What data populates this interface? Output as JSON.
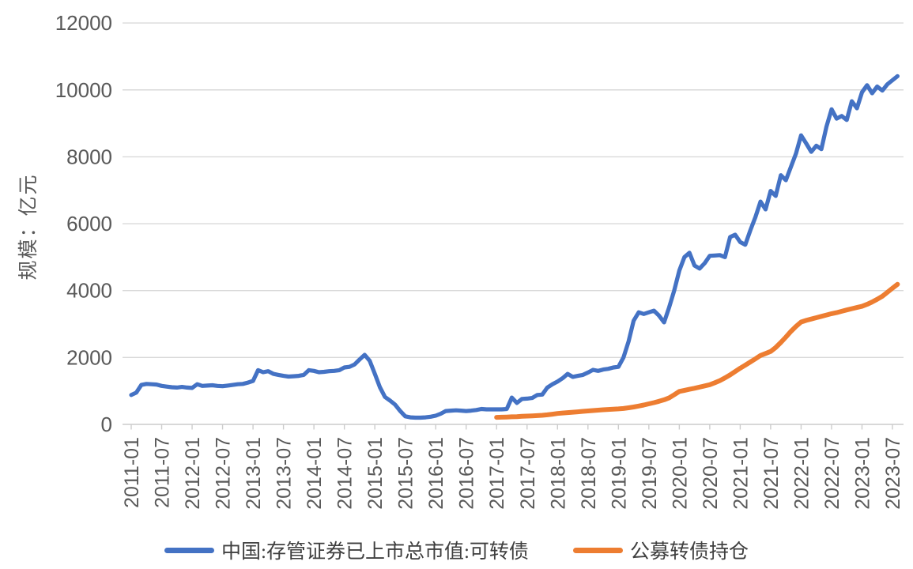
{
  "chart_data": {
    "type": "line",
    "title": "",
    "xlabel": "",
    "ylabel": "规模：亿元",
    "ylim": [
      0,
      12000
    ],
    "yticks": [
      0,
      2000,
      4000,
      6000,
      8000,
      10000,
      12000
    ],
    "xtick_labels": [
      "2011-01",
      "2011-07",
      "2012-01",
      "2012-07",
      "2013-01",
      "2013-07",
      "2014-01",
      "2014-07",
      "2015-01",
      "2015-07",
      "2016-01",
      "2016-07",
      "2017-01",
      "2017-07",
      "2018-01",
      "2018-07",
      "2019-01",
      "2019-07",
      "2020-01",
      "2020-07",
      "2021-01",
      "2021-07",
      "2022-01",
      "2022-07",
      "2023-01",
      "2023-07"
    ],
    "x_frequency": "monthly",
    "x_start": "2011-01",
    "x_end": "2023-08",
    "grid": "horizontal",
    "legend_position": "bottom",
    "series": [
      {
        "name": "中国:存管证券已上市总市值:可转债",
        "color": "#4472C4",
        "start": "2011-01",
        "start_index": 0,
        "values": [
          880,
          950,
          1180,
          1210,
          1200,
          1190,
          1150,
          1130,
          1110,
          1100,
          1120,
          1100,
          1090,
          1200,
          1150,
          1160,
          1170,
          1150,
          1140,
          1160,
          1180,
          1200,
          1210,
          1250,
          1300,
          1620,
          1560,
          1590,
          1510,
          1480,
          1450,
          1430,
          1440,
          1450,
          1480,
          1620,
          1600,
          1560,
          1570,
          1590,
          1600,
          1620,
          1700,
          1720,
          1790,
          1940,
          2080,
          1900,
          1510,
          1110,
          820,
          710,
          590,
          400,
          240,
          210,
          200,
          200,
          210,
          230,
          260,
          320,
          400,
          410,
          420,
          410,
          400,
          410,
          430,
          460,
          450,
          450,
          450,
          450,
          460,
          800,
          640,
          760,
          770,
          790,
          880,
          890,
          1100,
          1200,
          1280,
          1380,
          1510,
          1420,
          1450,
          1480,
          1550,
          1630,
          1600,
          1640,
          1660,
          1700,
          1720,
          2000,
          2480,
          3100,
          3350,
          3300,
          3350,
          3400,
          3250,
          3050,
          3500,
          4000,
          4600,
          5000,
          5130,
          4750,
          4660,
          4820,
          5040,
          5050,
          5060,
          5000,
          5600,
          5670,
          5450,
          5370,
          5800,
          6200,
          6660,
          6430,
          6980,
          6830,
          7450,
          7300,
          7700,
          8100,
          8640,
          8400,
          8150,
          8330,
          8230,
          8900,
          9420,
          9140,
          9220,
          9100,
          9660,
          9450,
          9930,
          10140,
          9900,
          10100,
          9980,
          10170,
          10290,
          10410
        ]
      },
      {
        "name": "公募转债持仓",
        "color": "#ED7D31",
        "start": "2017-01",
        "start_index": 72,
        "values": [
          210,
          215,
          220,
          226,
          232,
          240,
          247,
          254,
          262,
          272,
          285,
          305,
          325,
          340,
          352,
          364,
          376,
          390,
          402,
          414,
          426,
          436,
          446,
          455,
          462,
          475,
          495,
          520,
          548,
          580,
          615,
          650,
          690,
          735,
          795,
          885,
          985,
          1015,
          1050,
          1080,
          1115,
          1150,
          1185,
          1245,
          1310,
          1390,
          1480,
          1580,
          1680,
          1770,
          1865,
          1960,
          2060,
          2120,
          2180,
          2300,
          2450,
          2610,
          2780,
          2930,
          3060,
          3110,
          3150,
          3190,
          3230,
          3270,
          3310,
          3340,
          3380,
          3420,
          3460,
          3495,
          3530,
          3590,
          3660,
          3740,
          3830,
          3950,
          4070,
          4190
        ]
      }
    ]
  },
  "colors": {
    "series_blue": "#4472C4",
    "series_orange": "#ED7D31",
    "gridline": "#D9D9D9",
    "axis_line": "#CCCCCC",
    "tick_text": "#595959",
    "legend_text": "#3f3f3f",
    "background": "#FFFFFF"
  },
  "legend": {
    "items": [
      {
        "label": "中国:存管证券已上市总市值:可转债",
        "color": "#4472C4"
      },
      {
        "label": "公募转债持仓",
        "color": "#ED7D31"
      }
    ]
  }
}
